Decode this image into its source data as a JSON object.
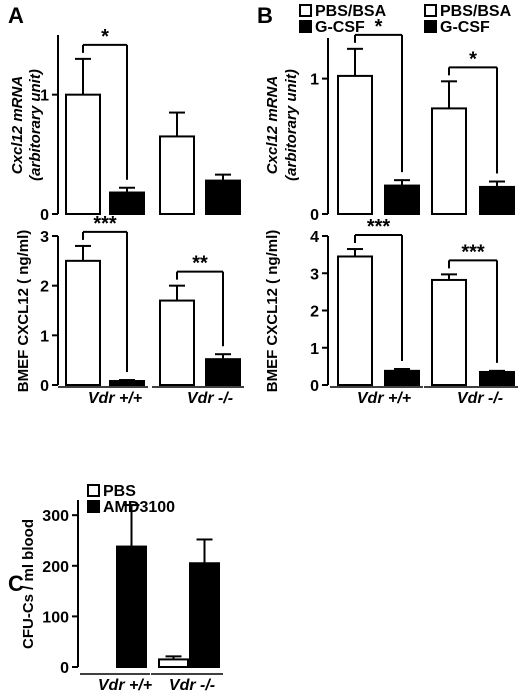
{
  "colors": {
    "control_fill": "#ffffff",
    "treated_fill": "#000000",
    "ink": "#000000"
  },
  "chart_data": [
    {
      "panel": "A",
      "type": "bar",
      "legend": [
        "PBS/BSA",
        "G-CSF"
      ],
      "legend_placement": "top-right",
      "groups": [
        "Vdr +/+",
        "Vdr -/-"
      ],
      "subplots": [
        {
          "ylabel_line1": "Cxcl12 mRNA",
          "ylabel_line2": "(arbitorary unit)",
          "ylim": [
            0,
            1.5
          ],
          "ticks": [
            "0",
            "1"
          ],
          "tick_values": [
            0,
            1
          ],
          "series": [
            {
              "name": "PBS/BSA",
              "values": [
                1.0,
                0.65
              ],
              "errors": [
                0.3,
                0.2
              ]
            },
            {
              "name": "G-CSF",
              "values": [
                0.18,
                0.28
              ],
              "errors": [
                0.04,
                0.05
              ]
            }
          ],
          "significance": [
            {
              "group": "Vdr +/+",
              "label": "*"
            }
          ]
        },
        {
          "ylabel_line1": "BMEF CXCL12 ( ng/ml)",
          "ylabel_line2": "",
          "ylim": [
            0,
            3.0
          ],
          "ticks": [
            "0",
            "1",
            "2",
            "3"
          ],
          "tick_values": [
            0,
            1,
            2,
            3
          ],
          "series": [
            {
              "name": "PBS/BSA",
              "values": [
                2.5,
                1.7
              ],
              "errors": [
                0.3,
                0.3
              ]
            },
            {
              "name": "G-CSF",
              "values": [
                0.08,
                0.52
              ],
              "errors": [
                0.02,
                0.1
              ]
            }
          ],
          "significance": [
            {
              "group": "Vdr +/+",
              "label": "***"
            },
            {
              "group": "Vdr -/-",
              "label": "**"
            }
          ]
        }
      ]
    },
    {
      "panel": "B",
      "type": "bar",
      "legend": [
        "PBS/BSA",
        "G-CSF"
      ],
      "legend_placement": "top-right",
      "groups": [
        "Vdr +/+",
        "Vdr -/-"
      ],
      "subplots": [
        {
          "ylabel_line1": "Cxcl12 mRNA",
          "ylabel_line2": "(arbitorary unit)",
          "ylim": [
            0,
            1.3
          ],
          "ticks": [
            "0",
            "1"
          ],
          "tick_values": [
            0,
            1
          ],
          "series": [
            {
              "name": "PBS/BSA",
              "values": [
                1.02,
                0.78
              ],
              "errors": [
                0.2,
                0.2
              ]
            },
            {
              "name": "G-CSF",
              "values": [
                0.21,
                0.2
              ],
              "errors": [
                0.04,
                0.04
              ]
            }
          ],
          "significance": [
            {
              "group": "Vdr +/+",
              "label": "*"
            },
            {
              "group": "Vdr -/-",
              "label": "*"
            }
          ]
        },
        {
          "ylabel_line1": "BMEF CXCL12 ( ng/ml)",
          "ylabel_line2": "",
          "ylim": [
            0,
            4.0
          ],
          "ticks": [
            "0",
            "1",
            "2",
            "3",
            "4"
          ],
          "tick_values": [
            0,
            1,
            2,
            3,
            4
          ],
          "series": [
            {
              "name": "PBS/BSA",
              "values": [
                3.45,
                2.82
              ],
              "errors": [
                0.2,
                0.15
              ]
            },
            {
              "name": "G-CSF",
              "values": [
                0.38,
                0.35
              ],
              "errors": [
                0.05,
                0.03
              ]
            }
          ],
          "significance": [
            {
              "group": "Vdr +/+",
              "label": "***"
            },
            {
              "group": "Vdr -/-",
              "label": "***"
            }
          ]
        }
      ]
    },
    {
      "panel": "C",
      "type": "bar",
      "legend": [
        "PBS",
        "AMD3100"
      ],
      "legend_placement": "top-left",
      "groups": [
        "Vdr +/+",
        "Vdr -/-"
      ],
      "subplots": [
        {
          "ylabel_line1": "CFU-Cs / ml blood",
          "ylabel_line2": "",
          "ylim": [
            0,
            330
          ],
          "ticks": [
            "0",
            "100",
            "200",
            "300"
          ],
          "tick_values": [
            0,
            100,
            200,
            300
          ],
          "series": [
            {
              "name": "PBS",
              "values": [
                0,
                15
              ],
              "errors": [
                0,
                6
              ]
            },
            {
              "name": "AMD3100",
              "values": [
                238,
                205
              ],
              "errors": [
                82,
                47
              ]
            }
          ],
          "significance": []
        }
      ]
    }
  ]
}
